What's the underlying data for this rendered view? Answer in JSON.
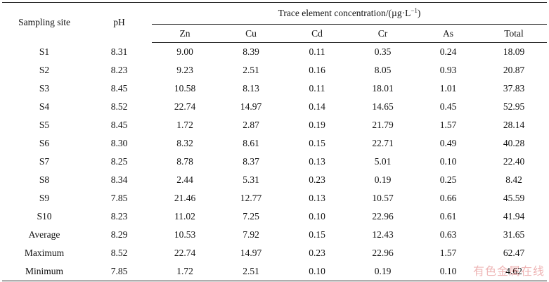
{
  "table": {
    "header": {
      "site": "Sampling site",
      "ph": "pH",
      "group_prefix": "Trace element concentration/(µg·L",
      "group_sup": "−1",
      "group_suffix": ")",
      "elements": [
        "Zn",
        "Cu",
        "Cd",
        "Cr",
        "As",
        "Total"
      ]
    },
    "rows": [
      {
        "site": "S1",
        "ph": "8.31",
        "zn": "9.00",
        "cu": "8.39",
        "cd": "0.11",
        "cr": "0.35",
        "as": "0.24",
        "total": "18.09"
      },
      {
        "site": "S2",
        "ph": "8.23",
        "zn": "9.23",
        "cu": "2.51",
        "cd": "0.16",
        "cr": "8.05",
        "as": "0.93",
        "total": "20.87"
      },
      {
        "site": "S3",
        "ph": "8.45",
        "zn": "10.58",
        "cu": "8.13",
        "cd": "0.11",
        "cr": "18.01",
        "as": "1.01",
        "total": "37.83"
      },
      {
        "site": "S4",
        "ph": "8.52",
        "zn": "22.74",
        "cu": "14.97",
        "cd": "0.14",
        "cr": "14.65",
        "as": "0.45",
        "total": "52.95"
      },
      {
        "site": "S5",
        "ph": "8.45",
        "zn": "1.72",
        "cu": "2.87",
        "cd": "0.19",
        "cr": "21.79",
        "as": "1.57",
        "total": "28.14"
      },
      {
        "site": "S6",
        "ph": "8.30",
        "zn": "8.32",
        "cu": "8.61",
        "cd": "0.15",
        "cr": "22.71",
        "as": "0.49",
        "total": "40.28"
      },
      {
        "site": "S7",
        "ph": "8.25",
        "zn": "8.78",
        "cu": "8.37",
        "cd": "0.13",
        "cr": "5.01",
        "as": "0.10",
        "total": "22.40"
      },
      {
        "site": "S8",
        "ph": "8.34",
        "zn": "2.44",
        "cu": "5.31",
        "cd": "0.23",
        "cr": "0.19",
        "as": "0.25",
        "total": "8.42"
      },
      {
        "site": "S9",
        "ph": "7.85",
        "zn": "21.46",
        "cu": "12.77",
        "cd": "0.13",
        "cr": "10.57",
        "as": "0.66",
        "total": "45.59"
      },
      {
        "site": "S10",
        "ph": "8.23",
        "zn": "11.02",
        "cu": "7.25",
        "cd": "0.10",
        "cr": "22.96",
        "as": "0.61",
        "total": "41.94"
      },
      {
        "site": "Average",
        "ph": "8.29",
        "zn": "10.53",
        "cu": "7.92",
        "cd": "0.15",
        "cr": "12.43",
        "as": "0.63",
        "total": "31.65"
      },
      {
        "site": "Maximum",
        "ph": "8.52",
        "zn": "22.74",
        "cu": "14.97",
        "cd": "0.23",
        "cr": "22.96",
        "as": "1.57",
        "total": "62.47"
      },
      {
        "site": "Minimum",
        "ph": "7.85",
        "zn": "1.72",
        "cu": "2.51",
        "cd": "0.10",
        "cr": "0.19",
        "as": "0.10",
        "total": "4.62"
      }
    ]
  },
  "watermark": "有色金属在线"
}
